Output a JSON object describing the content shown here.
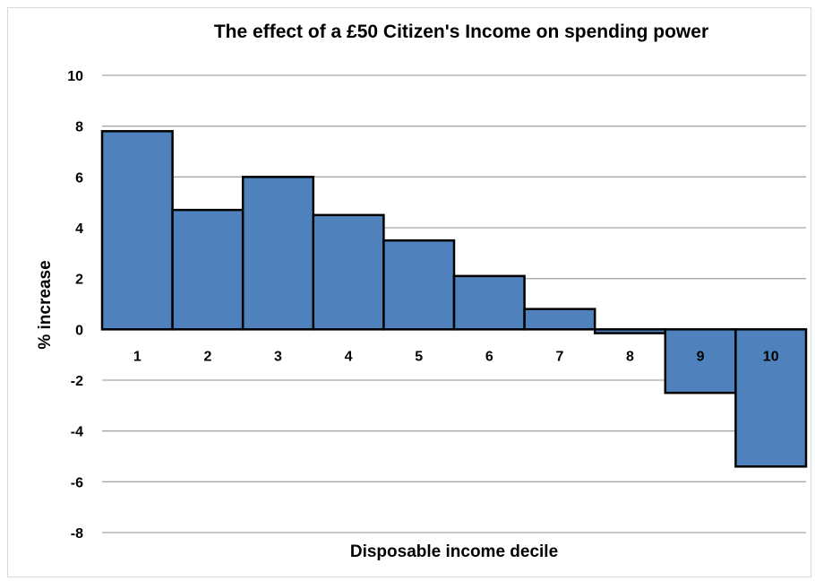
{
  "chart_data": {
    "type": "bar",
    "title": "The effect of a £50 Citizen's Income on spending power",
    "xlabel": "Disposable income decile",
    "ylabel": "% increase",
    "categories": [
      "1",
      "2",
      "3",
      "4",
      "5",
      "6",
      "7",
      "8",
      "9",
      "10"
    ],
    "values": [
      7.8,
      4.7,
      6.0,
      4.5,
      3.5,
      2.1,
      0.8,
      -0.15,
      -2.5,
      -5.4
    ],
    "ylim": [
      -8,
      10
    ],
    "yticks": [
      "10",
      "8",
      "6",
      "4",
      "2",
      "0",
      "-2",
      "-4",
      "-6",
      "-8"
    ],
    "grid": true,
    "bar_color": "#4f81bd",
    "legend": "none"
  }
}
